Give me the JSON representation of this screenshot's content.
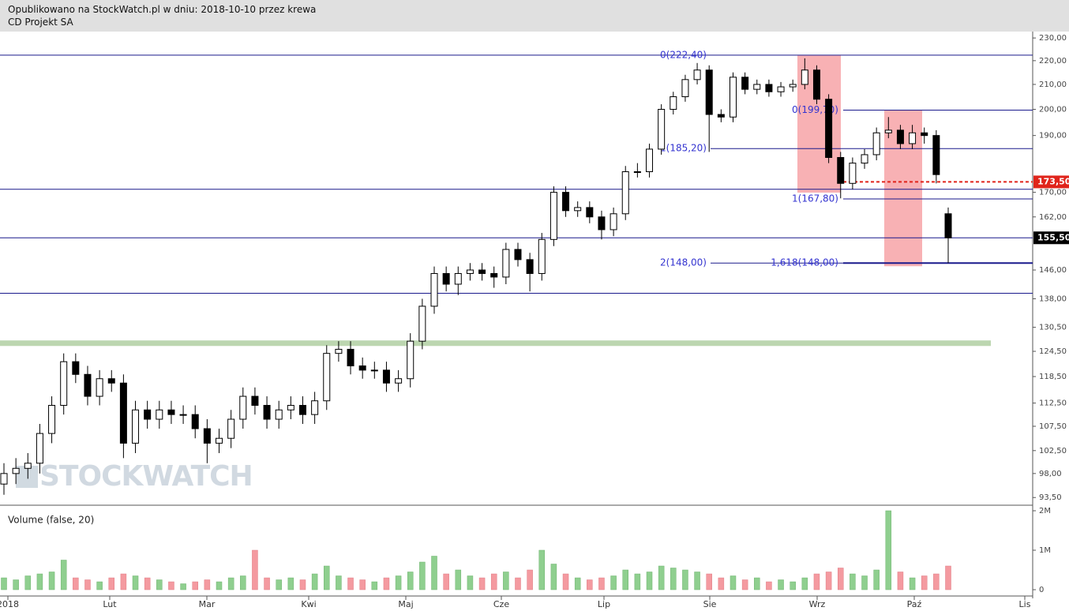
{
  "header": {
    "published": "Opublikowano na StockWatch.pl w dniu: 2018-10-10 przez krewa",
    "instrument": "CD Projekt SA"
  },
  "chart_data": [
    {
      "type": "candlestick",
      "log_scale": true,
      "ylim": [
        92.1,
        232.9
      ],
      "yticks": [
        {
          "value": 93.5,
          "label": "93,50"
        },
        {
          "value": 98,
          "label": "98,00"
        },
        {
          "value": 102.5,
          "label": "102,50"
        },
        {
          "value": 107.5,
          "label": "107,50"
        },
        {
          "value": 112.5,
          "label": "112,50"
        },
        {
          "value": 118.5,
          "label": "118,50"
        },
        {
          "value": 124.5,
          "label": "124,50"
        },
        {
          "value": 130.5,
          "label": "130,50"
        },
        {
          "value": 138,
          "label": "138,00"
        },
        {
          "value": 146,
          "label": "146,00"
        },
        {
          "value": 162,
          "label": "162,00"
        },
        {
          "value": 170,
          "label": "170,00"
        },
        {
          "value": 190,
          "label": "190,00"
        },
        {
          "value": 200,
          "label": "200,00"
        },
        {
          "value": 210,
          "label": "210,00"
        },
        {
          "value": 220,
          "label": "220,00"
        },
        {
          "value": 230,
          "label": "230,00"
        }
      ],
      "x_labels": [
        "2018",
        "Lut",
        "Mar",
        "Kwi",
        "Maj",
        "Cze",
        "Lip",
        "Sie",
        "Wrz",
        "Paź",
        "Lis"
      ],
      "open": [
        96,
        98,
        99,
        100,
        106,
        112,
        122,
        119,
        114,
        118,
        117,
        104,
        111,
        109,
        111,
        110,
        110,
        107,
        104,
        105,
        109,
        114,
        112,
        109,
        111,
        112,
        110,
        113,
        124,
        125,
        121,
        120,
        120,
        117,
        118,
        127,
        136,
        145,
        142,
        145,
        146,
        145,
        144,
        152,
        149,
        145,
        155,
        170,
        164,
        165,
        162,
        158,
        163,
        177,
        177,
        185,
        200,
        205,
        212,
        216,
        198,
        197,
        213,
        208,
        210,
        207,
        209,
        210,
        216,
        204,
        182,
        173,
        180,
        183,
        191,
        192,
        187,
        191,
        190,
        163
      ],
      "high": [
        100,
        101,
        102,
        108,
        114,
        124,
        124,
        121,
        120,
        120,
        119,
        113,
        113,
        113,
        113,
        112,
        112,
        109,
        107,
        111,
        116,
        116,
        114,
        113,
        114,
        114,
        115,
        126,
        127,
        127,
        123,
        122,
        122,
        120,
        129,
        138,
        147,
        147,
        147,
        148,
        148,
        147,
        154,
        154,
        151,
        157,
        172,
        172,
        167,
        167,
        164,
        165,
        179,
        180,
        187,
        202,
        207,
        214,
        219,
        218,
        200,
        215,
        215,
        212,
        212,
        211,
        212,
        221,
        218,
        206,
        184,
        182,
        185,
        193,
        197,
        194,
        194,
        193,
        192,
        165
      ],
      "low": [
        94,
        96,
        97,
        98,
        104,
        110,
        117,
        112,
        112,
        115,
        101,
        102,
        107,
        107,
        108,
        108,
        105,
        100,
        102,
        103,
        107,
        110,
        107,
        107,
        109,
        108,
        108,
        111,
        122,
        119,
        118,
        118,
        115,
        115,
        116,
        125,
        134,
        140,
        139,
        143,
        143,
        141,
        142,
        147,
        140,
        143,
        153,
        162,
        162,
        160,
        155,
        156,
        161,
        175,
        175,
        183,
        198,
        203,
        210,
        184,
        195,
        195,
        206,
        206,
        205,
        205,
        207,
        208,
        202,
        180,
        168,
        171,
        178,
        181,
        189,
        185,
        185,
        187,
        173,
        148
      ],
      "close": [
        98,
        99,
        100,
        106,
        112,
        122,
        119,
        114,
        118,
        117,
        104,
        111,
        109,
        111,
        110,
        110,
        107,
        104,
        105,
        109,
        114,
        112,
        109,
        111,
        112,
        110,
        113,
        124,
        125,
        121,
        120,
        120,
        117,
        118,
        127,
        136,
        145,
        142,
        145,
        146,
        145,
        144,
        152,
        149,
        145,
        155,
        170,
        164,
        165,
        162,
        158,
        163,
        177,
        177,
        185,
        200,
        205,
        212,
        216,
        198,
        197,
        213,
        208,
        210,
        207,
        209,
        210,
        216,
        204,
        182,
        173,
        180,
        183,
        191,
        192,
        187,
        191,
        190,
        176,
        155.5
      ],
      "up_color": "#ffffff",
      "down_color": "#000000",
      "hlines": [
        {
          "value": 222.4,
          "color": "#1a1a8c"
        },
        {
          "value": 171,
          "color": "#1a1a8c"
        },
        {
          "value": 155.5,
          "color": "#1a1a8c"
        },
        {
          "value": 139.5,
          "color": "#1a1a8c"
        }
      ],
      "support_band": {
        "value": 126.5,
        "color": "#bcd6b0"
      },
      "fib_levels": [
        {
          "value": 222.4,
          "label": "0(222,40)"
        },
        {
          "value": 199.7,
          "label": "0(199,70)"
        },
        {
          "value": 185.2,
          "label": "1(185,20)"
        },
        {
          "value": 167.8,
          "label": "1(167,80)"
        },
        {
          "value": 148,
          "label": "2(148,00)"
        },
        {
          "value": 148,
          "label": "1,618(148,00)"
        }
      ],
      "zone_color": "#f7a8ac",
      "dashed_level": {
        "value": 173.5,
        "color": "#e0241b"
      },
      "price_markers": [
        {
          "value": 173.5,
          "label": "173,50",
          "color": "#e0241b"
        },
        {
          "value": 155.5,
          "label": "155,50",
          "color": "#000000"
        }
      ],
      "watermark": "STOCKWATCH"
    },
    {
      "type": "bar",
      "title": "Volume (false, 20)",
      "ylim": [
        -160000,
        2140000
      ],
      "yticks": [
        0,
        {
          "value": 1000000,
          "label": "1M"
        },
        {
          "value": 2000000,
          "label": "2M"
        }
      ],
      "up_color": "#8fcf8f",
      "down_color": "#f49aa0",
      "values": [
        300000,
        250000,
        350000,
        400000,
        450000,
        750000,
        300000,
        250000,
        200000,
        300000,
        400000,
        350000,
        300000,
        250000,
        200000,
        150000,
        200000,
        250000,
        200000,
        300000,
        350000,
        1000000,
        300000,
        250000,
        300000,
        250000,
        400000,
        600000,
        350000,
        300000,
        250000,
        200000,
        300000,
        350000,
        450000,
        700000,
        850000,
        400000,
        500000,
        350000,
        300000,
        400000,
        450000,
        300000,
        500000,
        1000000,
        650000,
        400000,
        300000,
        250000,
        300000,
        350000,
        500000,
        400000,
        450000,
        600000,
        550000,
        500000,
        450000,
        400000,
        300000,
        350000,
        250000,
        300000,
        200000,
        250000,
        200000,
        300000,
        400000,
        450000,
        550000,
        400000,
        350000,
        500000,
        2000000,
        450000,
        300000,
        350000,
        400000,
        600000
      ]
    }
  ]
}
